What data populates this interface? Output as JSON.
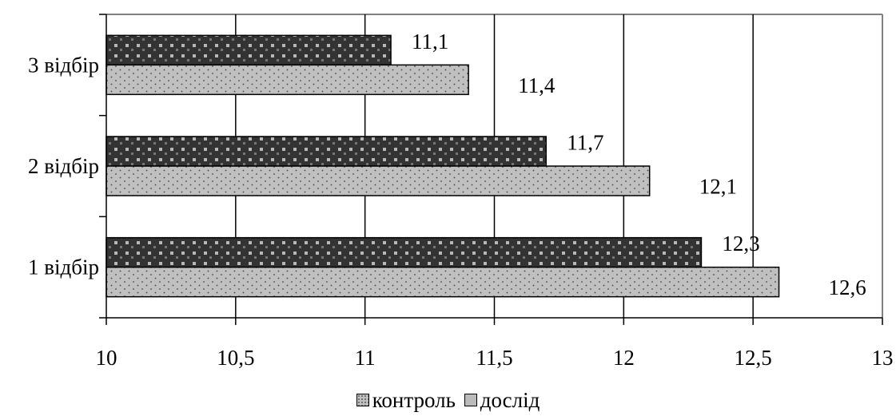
{
  "chart_data": {
    "type": "bar",
    "orientation": "horizontal",
    "categories": [
      "1 відбір",
      "2 відбір",
      "3 відбір"
    ],
    "series": [
      {
        "name": "контроль",
        "values": [
          12.6,
          12.1,
          11.4
        ],
        "labels": [
          "12,6",
          "12,1",
          "11,4"
        ],
        "color": "#c0c0c0",
        "pattern": "dotted"
      },
      {
        "name": "дослід",
        "values": [
          12.3,
          11.7,
          11.1
        ],
        "labels": [
          "12,3",
          "11,7",
          "11,1"
        ],
        "color": "#333333",
        "pattern": "checkered"
      }
    ],
    "xlim": [
      10,
      13
    ],
    "xticks": [
      10,
      10.5,
      11,
      11.5,
      12,
      12.5,
      13
    ],
    "xtick_labels": [
      "10",
      "10,5",
      "11",
      "11,5",
      "12",
      "12,5",
      "13"
    ],
    "grid": "vertical",
    "legend_position": "bottom"
  },
  "legend": {
    "control_label": "контроль",
    "experiment_label": "дослід"
  }
}
